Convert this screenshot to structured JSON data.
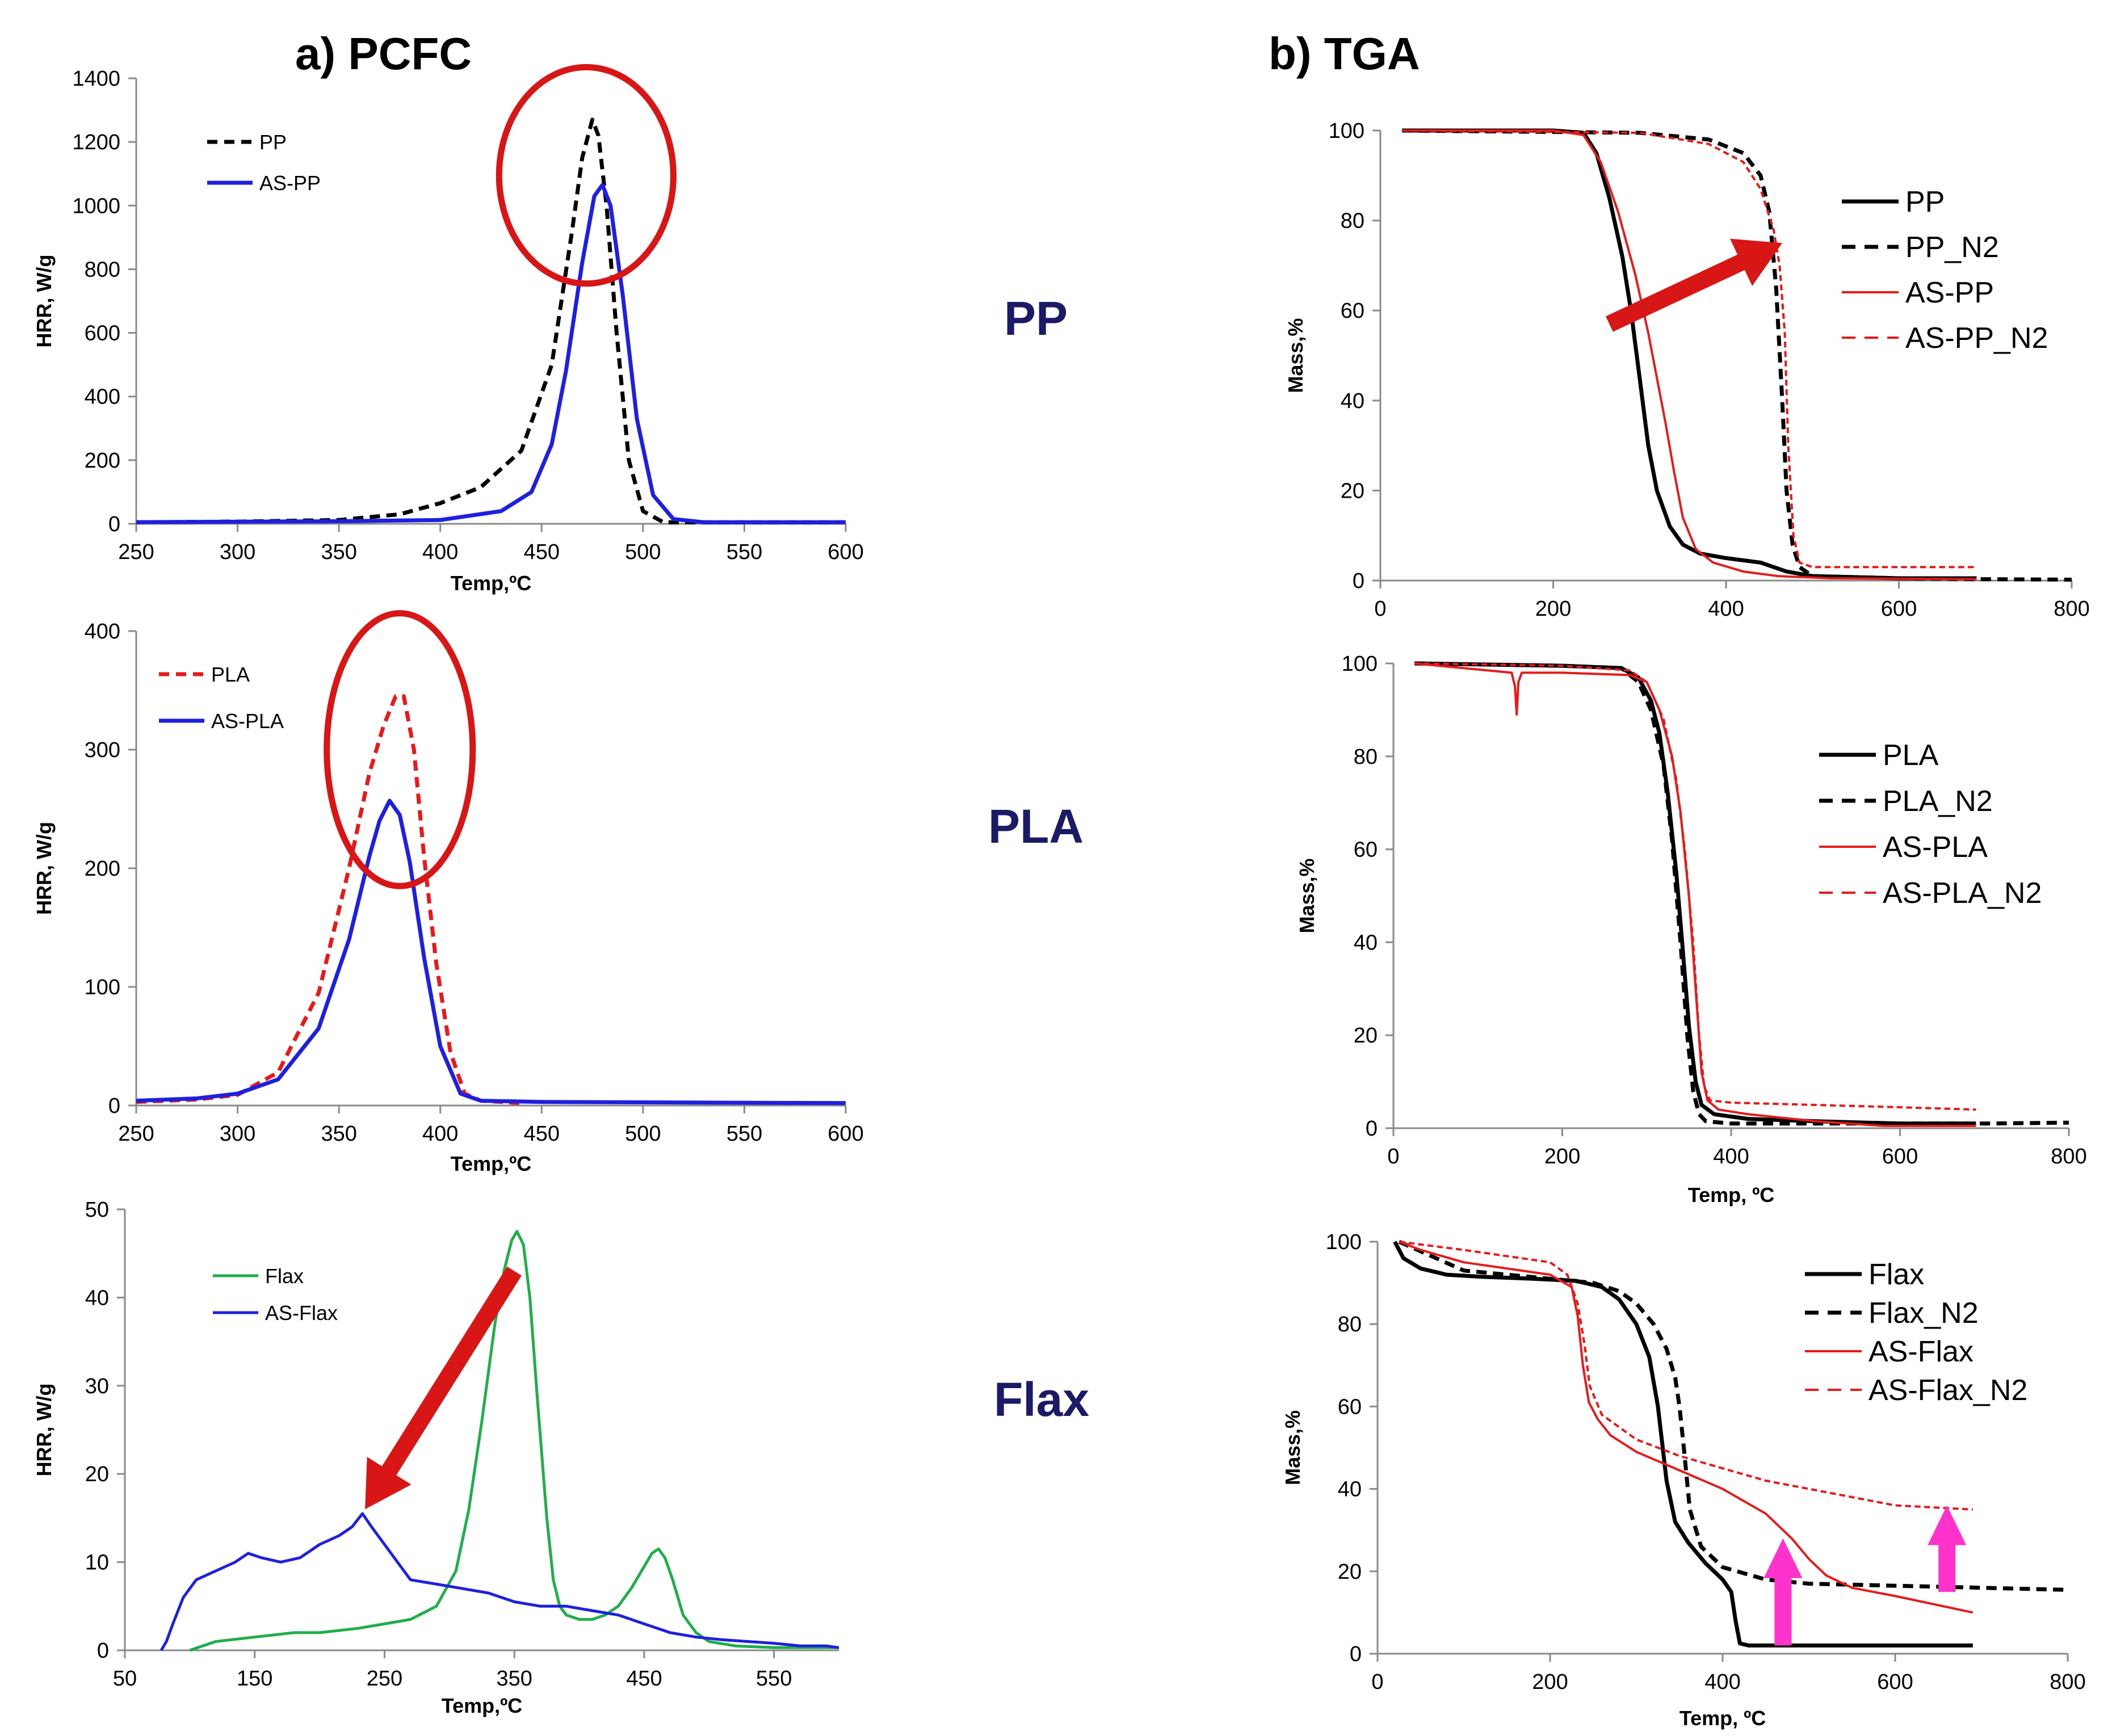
{
  "headings": {
    "pcfc": "a) PCFC",
    "tga": "b) TGA"
  },
  "row_labels": {
    "pp": "PP",
    "pla": "PLA",
    "flax": "Flax"
  },
  "colors": {
    "black": "#000000",
    "blue": "#1f1fe0",
    "red": "#e61a1a",
    "green": "#1fae4a",
    "annot_red": "#d81616",
    "magenta": "#ff33cc",
    "row_label": "#1a1a66"
  },
  "chart_data": [
    {
      "id": "pcfc-pp",
      "type": "line",
      "title": "",
      "xlabel": "Temp,ºC",
      "ylabel": "HRR, W/g",
      "xlim": [
        250,
        600
      ],
      "ylim": [
        0,
        1400
      ],
      "xticks": [
        250,
        300,
        350,
        400,
        450,
        500,
        550,
        600
      ],
      "yticks": [
        0,
        200,
        400,
        600,
        800,
        1000,
        1200,
        1400
      ],
      "series": [
        {
          "name": "PP",
          "color": "#000000",
          "dash": true,
          "width": 7,
          "x": [
            250,
            300,
            350,
            380,
            400,
            420,
            440,
            455,
            465,
            470,
            475,
            478,
            482,
            487,
            493,
            500,
            510,
            600
          ],
          "y": [
            5,
            7,
            12,
            30,
            65,
            115,
            230,
            500,
            920,
            1150,
            1270,
            1220,
            1000,
            600,
            200,
            40,
            5,
            5
          ]
        },
        {
          "name": "AS-PP",
          "color": "#1f1fe0",
          "dash": false,
          "width": 7,
          "x": [
            250,
            350,
            400,
            430,
            445,
            455,
            462,
            470,
            476,
            480,
            484,
            490,
            497,
            505,
            515,
            530,
            600
          ],
          "y": [
            5,
            8,
            12,
            40,
            100,
            250,
            480,
            820,
            1030,
            1065,
            1000,
            720,
            330,
            90,
            15,
            5,
            5
          ]
        }
      ],
      "annotations": {
        "ellipse": {
          "cx": 472,
          "cy": 1095,
          "rx": 43,
          "ry": 340
        }
      }
    },
    {
      "id": "pcfc-pla",
      "type": "line",
      "title": "",
      "xlabel": "Temp,ºC",
      "ylabel": "HRR, W/g",
      "xlim": [
        250,
        600
      ],
      "ylim": [
        0,
        400
      ],
      "xticks": [
        250,
        300,
        350,
        400,
        450,
        500,
        550,
        600
      ],
      "yticks": [
        0,
        100,
        200,
        300,
        400
      ],
      "series": [
        {
          "name": "PLA",
          "color": "#e61a1a",
          "dash": true,
          "width": 7,
          "x": [
            250,
            280,
            300,
            320,
            340,
            355,
            365,
            372,
            378,
            382,
            387,
            392,
            398,
            405,
            412,
            420,
            440
          ],
          "y": [
            3,
            5,
            9,
            28,
            95,
            200,
            280,
            320,
            345,
            345,
            300,
            210,
            120,
            45,
            10,
            4,
            2
          ]
        },
        {
          "name": "AS-PLA",
          "color": "#1f1fe0",
          "dash": false,
          "width": 7,
          "x": [
            250,
            280,
            300,
            320,
            340,
            355,
            365,
            370,
            375,
            380,
            385,
            392,
            400,
            410,
            420,
            450,
            600
          ],
          "y": [
            4,
            6,
            10,
            22,
            65,
            140,
            210,
            240,
            257,
            245,
            205,
            125,
            50,
            10,
            4,
            3,
            2
          ]
        }
      ],
      "annotations": {
        "ellipse": {
          "cx": 380,
          "cy": 300,
          "rx": 36,
          "ry": 115
        }
      }
    },
    {
      "id": "pcfc-flax",
      "type": "line",
      "title": "",
      "xlabel": "Temp,ºC",
      "ylabel": "HRR, W/g",
      "xlim": [
        50,
        600
      ],
      "ylim": [
        0,
        50
      ],
      "xticks": [
        50,
        150,
        250,
        350,
        450,
        550
      ],
      "yticks": [
        0,
        10,
        20,
        30,
        40,
        50
      ],
      "series": [
        {
          "name": "Flax",
          "color": "#1fae4a",
          "dash": false,
          "width": 5,
          "x": [
            100,
            120,
            150,
            180,
            200,
            230,
            250,
            270,
            290,
            305,
            315,
            325,
            335,
            342,
            348,
            352,
            357,
            362,
            368,
            375,
            380,
            385,
            390,
            400,
            410,
            420,
            430,
            440,
            450,
            456,
            461,
            466,
            472,
            480,
            490,
            500,
            520,
            550,
            600
          ],
          "y": [
            0,
            1,
            1.5,
            2,
            2,
            2.5,
            3,
            3.5,
            5,
            9,
            16,
            26,
            37,
            43,
            46.5,
            47.5,
            46,
            40,
            28,
            15,
            8,
            5,
            4,
            3.5,
            3.5,
            4,
            5,
            7,
            9.5,
            11,
            11.5,
            10.5,
            8,
            4,
            2,
            1,
            0.5,
            0.3,
            0.3
          ]
        },
        {
          "name": "AS-Flax",
          "color": "#1f1fe0",
          "dash": false,
          "width": 5,
          "x": [
            78,
            82,
            87,
            95,
            105,
            120,
            135,
            145,
            155,
            170,
            185,
            200,
            215,
            225,
            233,
            240,
            250,
            260,
            270,
            290,
            310,
            330,
            350,
            370,
            390,
            410,
            430,
            450,
            470,
            490,
            510,
            530,
            550,
            570,
            590,
            600
          ],
          "y": [
            0,
            1,
            3,
            6,
            8,
            9,
            10,
            11,
            10.5,
            10,
            10.5,
            12,
            13,
            14,
            15.5,
            14,
            12,
            10,
            8,
            7.5,
            7,
            6.5,
            5.5,
            5,
            5,
            4.5,
            4,
            3,
            2,
            1.5,
            1.2,
            1,
            0.8,
            0.5,
            0.5,
            0.3
          ]
        }
      ],
      "annotations": {
        "arrow": {
          "from": [
            350,
            43
          ],
          "to": [
            235,
            16
          ]
        }
      }
    },
    {
      "id": "tga-pp",
      "type": "line",
      "title": "",
      "xlabel": "",
      "ylabel": "Mass,%",
      "xlim": [
        0,
        800
      ],
      "ylim": [
        0,
        100
      ],
      "xticks": [
        0,
        200,
        400,
        600,
        800
      ],
      "yticks": [
        0,
        20,
        40,
        60,
        80,
        100
      ],
      "series": [
        {
          "name": "PP",
          "color": "#000000",
          "dash": false,
          "width": 7,
          "x": [
            25,
            200,
            235,
            250,
            265,
            280,
            290,
            300,
            310,
            320,
            335,
            350,
            370,
            400,
            440,
            470,
            500,
            600,
            690
          ],
          "y": [
            100,
            100,
            99.5,
            95,
            85,
            72,
            60,
            45,
            30,
            20,
            12,
            8,
            6,
            5,
            4,
            2,
            1,
            0.5,
            0.5
          ]
        },
        {
          "name": "PP_N2",
          "color": "#000000",
          "dash": true,
          "width": 7,
          "x": [
            25,
            300,
            380,
            420,
            440,
            450,
            458,
            465,
            470,
            477,
            485,
            500,
            600,
            700,
            800
          ],
          "y": [
            100,
            99.5,
            98,
            95,
            90,
            82,
            65,
            40,
            20,
            8,
            3,
            1,
            0.5,
            0.3,
            0.2
          ]
        },
        {
          "name": "AS-PP",
          "color": "#e61a1a",
          "dash": false,
          "width": 4,
          "x": [
            25,
            200,
            235,
            255,
            275,
            295,
            310,
            320,
            330,
            340,
            350,
            365,
            385,
            420,
            460,
            520,
            690
          ],
          "y": [
            100,
            100,
            99,
            93,
            82,
            68,
            55,
            45,
            35,
            24,
            14,
            7,
            4,
            2,
            1,
            0.5,
            0.3
          ]
        },
        {
          "name": "AS-PP_N2",
          "color": "#e61a1a",
          "dash": true,
          "width": 4,
          "x": [
            25,
            300,
            380,
            420,
            440,
            455,
            462,
            468,
            472,
            478,
            485,
            500,
            600,
            690
          ],
          "y": [
            100,
            99.5,
            97,
            93,
            87,
            78,
            70,
            55,
            30,
            10,
            4,
            3,
            3,
            3
          ]
        }
      ],
      "annotations": {
        "arrow": {
          "from": [
            265,
            57
          ],
          "to": [
            465,
            75
          ]
        }
      }
    },
    {
      "id": "tga-pla",
      "type": "line",
      "title": "",
      "xlabel": "Temp, ºC",
      "ylabel": "Mass,%",
      "xlim": [
        0,
        800
      ],
      "ylim": [
        0,
        100
      ],
      "xticks": [
        0,
        200,
        400,
        600,
        800
      ],
      "yticks": [
        0,
        20,
        40,
        60,
        80,
        100
      ],
      "series": [
        {
          "name": "PLA",
          "color": "#000000",
          "dash": false,
          "width": 7,
          "x": [
            25,
            200,
            270,
            290,
            305,
            315,
            325,
            335,
            342,
            350,
            358,
            365,
            380,
            420,
            500,
            600,
            690
          ],
          "y": [
            100,
            99.5,
            99,
            97,
            92,
            85,
            72,
            55,
            40,
            22,
            10,
            5,
            3,
            2,
            1.5,
            1,
            1
          ]
        },
        {
          "name": "PLA_N2",
          "color": "#000000",
          "dash": true,
          "width": 7,
          "x": [
            25,
            200,
            270,
            290,
            305,
            320,
            330,
            340,
            348,
            355,
            362,
            370,
            400,
            500,
            600,
            700,
            800
          ],
          "y": [
            100,
            99.5,
            99,
            96,
            90,
            78,
            62,
            40,
            20,
            8,
            3,
            1.5,
            1,
            1,
            1,
            1,
            1.2
          ]
        },
        {
          "name": "AS-PLA",
          "color": "#e61a1a",
          "dash": false,
          "width": 4,
          "x": [
            25,
            140,
            144,
            146,
            148,
            152,
            200,
            280,
            300,
            315,
            330,
            340,
            350,
            358,
            365,
            372,
            385,
            420,
            500,
            580,
            690
          ],
          "y": [
            100,
            98,
            95,
            89,
            96,
            98,
            98,
            97.5,
            96,
            90,
            80,
            68,
            50,
            30,
            12,
            6,
            4,
            3,
            1.5,
            0.5,
            0.5
          ]
        },
        {
          "name": "AS-PLA_N2",
          "color": "#e61a1a",
          "dash": true,
          "width": 4,
          "x": [
            25,
            200,
            280,
            300,
            320,
            335,
            345,
            355,
            362,
            368,
            375,
            400,
            500,
            600,
            690
          ],
          "y": [
            100,
            99.5,
            98.5,
            96,
            88,
            75,
            60,
            40,
            20,
            9,
            6,
            5.5,
            5,
            4.5,
            4
          ]
        }
      ],
      "annotations": {}
    },
    {
      "id": "tga-flax",
      "type": "line",
      "title": "",
      "xlabel": "Temp, ºC",
      "ylabel": "Mass,%",
      "xlim": [
        0,
        800
      ],
      "ylim": [
        0,
        100
      ],
      "xticks": [
        0,
        200,
        400,
        600,
        800
      ],
      "yticks": [
        0,
        20,
        40,
        60,
        80,
        100
      ],
      "series": [
        {
          "name": "Flax",
          "color": "#000000",
          "dash": false,
          "width": 7,
          "x": [
            20,
            30,
            50,
            80,
            120,
            180,
            230,
            260,
            280,
            300,
            315,
            325,
            335,
            345,
            360,
            380,
            400,
            410,
            415,
            420,
            430,
            500,
            600,
            690
          ],
          "y": [
            100,
            96,
            93.5,
            92,
            91.5,
            91,
            90.5,
            89,
            86,
            80,
            72,
            60,
            42,
            32,
            27,
            22,
            18,
            15,
            8,
            2.5,
            2,
            2,
            2,
            2
          ]
        },
        {
          "name": "Flax_N2",
          "color": "#000000",
          "dash": true,
          "width": 7,
          "x": [
            25,
            100,
            200,
            250,
            280,
            300,
            320,
            335,
            345,
            350,
            355,
            362,
            375,
            400,
            450,
            500,
            600,
            700,
            800
          ],
          "y": [
            100,
            93,
            91,
            90,
            88,
            85,
            80,
            74,
            67,
            60,
            50,
            35,
            26,
            21,
            18,
            17,
            16.5,
            16,
            15.5
          ]
        },
        {
          "name": "AS-Flax",
          "color": "#e61a1a",
          "dash": false,
          "width": 4,
          "x": [
            25,
            50,
            100,
            150,
            200,
            225,
            232,
            238,
            245,
            255,
            270,
            300,
            350,
            400,
            450,
            480,
            500,
            520,
            550,
            600,
            690
          ],
          "y": [
            100,
            98,
            95,
            93.5,
            92,
            89,
            82,
            70,
            61,
            57,
            53,
            49,
            44.5,
            40,
            34,
            28,
            23,
            19,
            16,
            14,
            10
          ]
        },
        {
          "name": "AS-Flax_N2",
          "color": "#e61a1a",
          "dash": true,
          "width": 4,
          "x": [
            25,
            100,
            200,
            220,
            232,
            240,
            246,
            260,
            300,
            350,
            400,
            450,
            500,
            550,
            600,
            690
          ],
          "y": [
            100,
            98,
            95,
            92,
            85,
            75,
            65,
            58,
            52,
            48,
            45,
            42,
            40,
            38,
            36,
            35
          ]
        }
      ],
      "annotations": {
        "up_arrows": [
          {
            "x": 470,
            "from": 2,
            "to": 28
          },
          {
            "x": 660,
            "from": 15,
            "to": 36
          }
        ]
      }
    }
  ]
}
